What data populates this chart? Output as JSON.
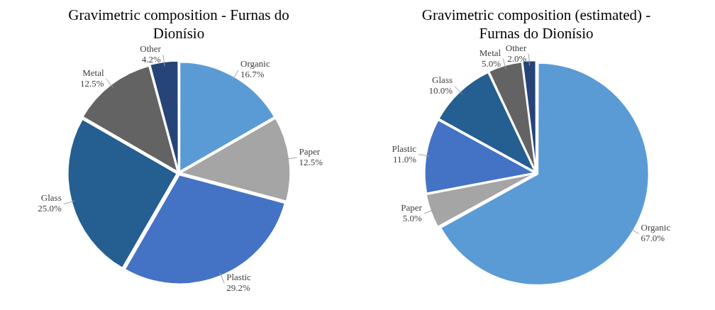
{
  "chart_data": [
    {
      "type": "pie",
      "title": "Gravimetric composition - Furnas do Dionísio",
      "categories": [
        "Organic",
        "Paper",
        "Plastic",
        "Glass",
        "Metal",
        "Other"
      ],
      "values": [
        16.7,
        12.5,
        29.2,
        25.0,
        12.5,
        4.2
      ],
      "value_labels": [
        "16.7%",
        "12.5%",
        "29.2%",
        "25.0%",
        "12.5%",
        "4.2%"
      ],
      "colors": [
        "#5b9bd5",
        "#a5a5a5",
        "#4472c4",
        "#255e91",
        "#636363",
        "#264478"
      ],
      "legend": false
    },
    {
      "type": "pie",
      "title": "Gravimetric composition (estimated) - Furnas do Dionísio",
      "categories": [
        "Organic",
        "Paper",
        "Plastic",
        "Glass",
        "Metal",
        "Other"
      ],
      "values": [
        67.0,
        5.0,
        11.0,
        10.0,
        5.0,
        2.0
      ],
      "value_labels": [
        "67.0%",
        "5.0%",
        "11.0%",
        "10.0%",
        "5.0%",
        "2.0%"
      ],
      "colors": [
        "#5b9bd5",
        "#a5a5a5",
        "#4472c4",
        "#255e91",
        "#636363",
        "#264478"
      ],
      "legend": false
    }
  ]
}
